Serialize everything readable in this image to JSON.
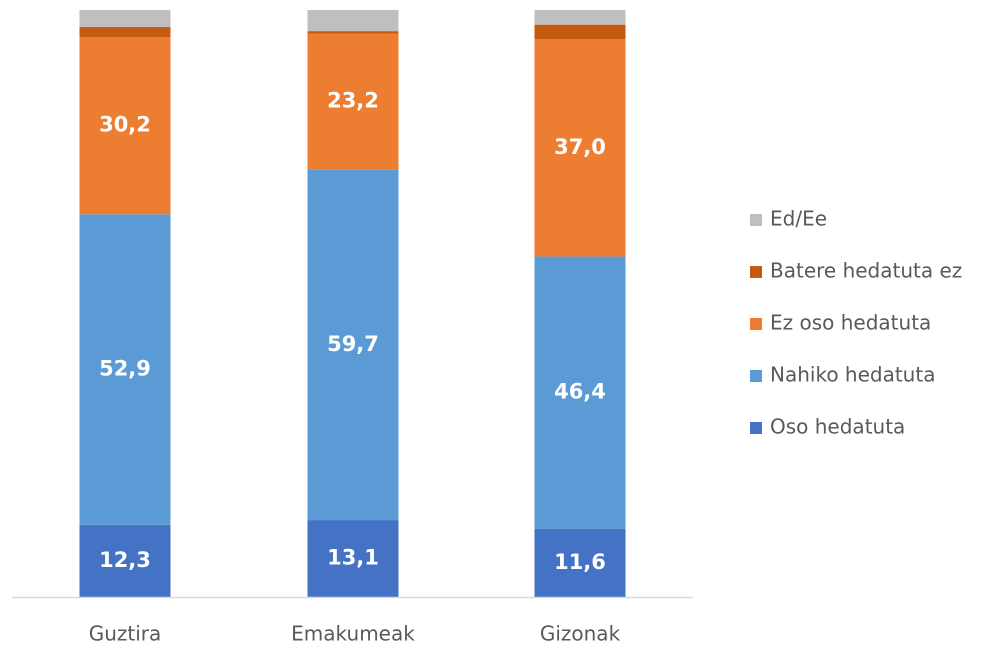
{
  "chart_data": {
    "type": "stacked_bar",
    "categories": [
      "Guztira",
      "Emakumeak",
      "Gizonak"
    ],
    "series": [
      {
        "name": "Oso hedatuta",
        "color": "#4472c4",
        "values": [
          12.3,
          13.1,
          11.6
        ],
        "value_labels": [
          "12,3",
          "13,1",
          "11,6"
        ]
      },
      {
        "name": "Nahiko hedatuta",
        "color": "#5b9bd5",
        "values": [
          52.9,
          59.7,
          46.4
        ],
        "value_labels": [
          "52,9",
          "59,7",
          "46,4"
        ]
      },
      {
        "name": "Ez oso hedatuta",
        "color": "#ed7d31",
        "values": [
          30.2,
          23.2,
          37.0
        ],
        "value_labels": [
          "30,2",
          "23,2",
          "37,0"
        ]
      },
      {
        "name": "Batere hedatuta ez",
        "color": "#c55a11",
        "values": [
          1.7,
          0.4,
          2.5
        ]
      },
      {
        "name": "Ed/Ee",
        "color": "#bfbfbf",
        "values": [
          2.9,
          3.6,
          2.5
        ]
      }
    ],
    "ylim": [
      0,
      100
    ],
    "legend": "right"
  }
}
